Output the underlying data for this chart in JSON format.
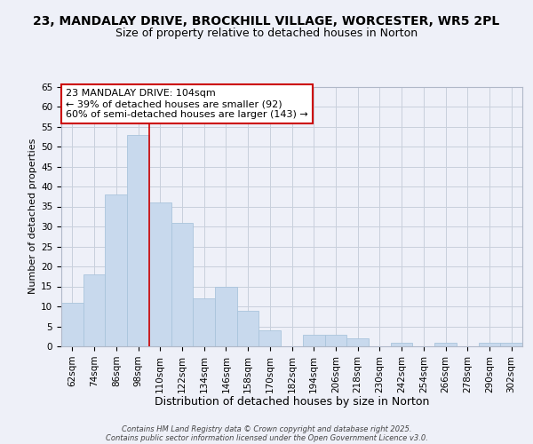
{
  "title1": "23, MANDALAY DRIVE, BROCKHILL VILLAGE, WORCESTER, WR5 2PL",
  "title2": "Size of property relative to detached houses in Norton",
  "xlabel": "Distribution of detached houses by size in Norton",
  "ylabel": "Number of detached properties",
  "categories": [
    "62sqm",
    "74sqm",
    "86sqm",
    "98sqm",
    "110sqm",
    "122sqm",
    "134sqm",
    "146sqm",
    "158sqm",
    "170sqm",
    "182sqm",
    "194sqm",
    "206sqm",
    "218sqm",
    "230sqm",
    "242sqm",
    "254sqm",
    "266sqm",
    "278sqm",
    "290sqm",
    "302sqm"
  ],
  "values": [
    11,
    18,
    38,
    53,
    36,
    31,
    12,
    15,
    9,
    4,
    0,
    3,
    3,
    2,
    0,
    1,
    0,
    1,
    0,
    1,
    1
  ],
  "bar_color": "#c8d9ed",
  "bar_edge_color": "#aac4dc",
  "grid_color": "#c8d0dc",
  "background_color": "#eef0f8",
  "red_line_x": 3.5,
  "annotation_text": "23 MANDALAY DRIVE: 104sqm\n← 39% of detached houses are smaller (92)\n60% of semi-detached houses are larger (143) →",
  "annotation_box_color": "#ffffff",
  "annotation_box_edge": "#cc0000",
  "ylim": [
    0,
    65
  ],
  "yticks": [
    0,
    5,
    10,
    15,
    20,
    25,
    30,
    35,
    40,
    45,
    50,
    55,
    60,
    65
  ],
  "title1_fontsize": 10,
  "title2_fontsize": 9,
  "xlabel_fontsize": 9,
  "ylabel_fontsize": 8,
  "tick_fontsize": 7.5,
  "ann_fontsize": 8,
  "footer1": "Contains HM Land Registry data © Crown copyright and database right 2025.",
  "footer2": "Contains public sector information licensed under the Open Government Licence v3.0."
}
